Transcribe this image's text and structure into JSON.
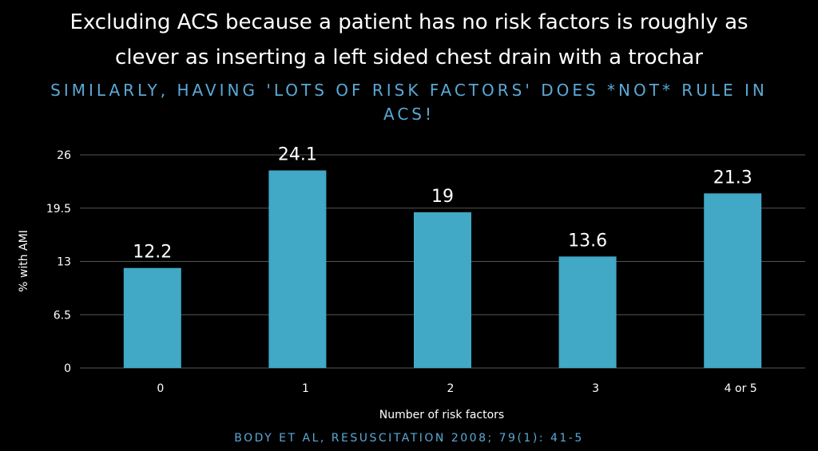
{
  "colors": {
    "background": "#000000",
    "bar": "#41a8c6",
    "accent": "#5aa9d6",
    "grid": "#555555"
  },
  "heading": {
    "title": "Excluding  ACS because a patient has no risk factors is roughly as\nclever as inserting a left sided chest drain with a trochar",
    "subtitle": "SIMILARLY, HAVING 'LOTS OF RISK FACTORS' DOES *NOT* RULE IN ACS!"
  },
  "footer": {
    "citation": "BODY ET AL,  RESUSCITATION 2008; 79(1): 41-5"
  },
  "chart_data": {
    "type": "bar",
    "categories": [
      "0",
      "1",
      "2",
      "3",
      "4 or 5"
    ],
    "values": [
      12.2,
      24.1,
      19,
      13.6,
      21.3
    ],
    "value_labels": [
      "12.2",
      "24.1",
      "19",
      "13.6",
      "21.3"
    ],
    "xlabel": "Number of risk factors",
    "ylabel": "% with AMI",
    "ylim": [
      0,
      26
    ],
    "yticks": [
      "0",
      "6.5",
      "13",
      "19.5",
      "26"
    ],
    "grid": true,
    "legend": "none"
  }
}
